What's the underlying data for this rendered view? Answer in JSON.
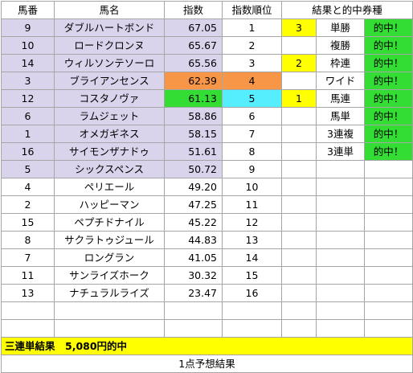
{
  "headers": {
    "umaban": "馬番",
    "bamei": "馬名",
    "shisu": "指数",
    "jun": "指数順位",
    "kekka": "結果と的中券種"
  },
  "rows": [
    {
      "umaban": "9",
      "bamei": "ダブルハートボンド",
      "shisu": "67.05",
      "jun": "1",
      "rank": "3",
      "bet": "単勝",
      "hit": "的中！"
    },
    {
      "umaban": "10",
      "bamei": "ロードクロンヌ",
      "shisu": "65.67",
      "jun": "2",
      "rank": "",
      "bet": "複勝",
      "hit": "的中！"
    },
    {
      "umaban": "14",
      "bamei": "ウィルソンテソーロ",
      "shisu": "65.56",
      "jun": "3",
      "rank": "2",
      "bet": "枠連",
      "hit": "的中！"
    },
    {
      "umaban": "3",
      "bamei": "ブライアンセンス",
      "shisu": "62.39",
      "jun": "4",
      "rank": "",
      "bet": "ワイド",
      "hit": "的中！"
    },
    {
      "umaban": "12",
      "bamei": "コスタノヴァ",
      "shisu": "61.13",
      "jun": "5",
      "rank": "1",
      "bet": "馬連",
      "hit": "的中！"
    },
    {
      "umaban": "6",
      "bamei": "ラムジェット",
      "shisu": "58.86",
      "jun": "6",
      "rank": "",
      "bet": "馬単",
      "hit": "的中！"
    },
    {
      "umaban": "1",
      "bamei": "オメガギネス",
      "shisu": "58.15",
      "jun": "7",
      "rank": "",
      "bet": "3連複",
      "hit": "的中！"
    },
    {
      "umaban": "16",
      "bamei": "サイモンザナドゥ",
      "shisu": "51.61",
      "jun": "8",
      "rank": "",
      "bet": "3連単",
      "hit": "的中！"
    },
    {
      "umaban": "5",
      "bamei": "シックスペンス",
      "shisu": "50.72",
      "jun": "9",
      "rank": "",
      "bet": "",
      "hit": ""
    },
    {
      "umaban": "4",
      "bamei": "ペリエール",
      "shisu": "49.20",
      "jun": "10",
      "rank": "",
      "bet": "",
      "hit": ""
    },
    {
      "umaban": "2",
      "bamei": "ハッピーマン",
      "shisu": "47.25",
      "jun": "11",
      "rank": "",
      "bet": "",
      "hit": ""
    },
    {
      "umaban": "15",
      "bamei": "ペプチドナイル",
      "shisu": "45.22",
      "jun": "12",
      "rank": "",
      "bet": "",
      "hit": ""
    },
    {
      "umaban": "8",
      "bamei": "サクラトゥジュール",
      "shisu": "44.83",
      "jun": "13",
      "rank": "",
      "bet": "",
      "hit": ""
    },
    {
      "umaban": "7",
      "bamei": "ロングラン",
      "shisu": "41.05",
      "jun": "14",
      "rank": "",
      "bet": "",
      "hit": ""
    },
    {
      "umaban": "11",
      "bamei": "サンライズホーク",
      "shisu": "30.32",
      "jun": "15",
      "rank": "",
      "bet": "",
      "hit": ""
    },
    {
      "umaban": "13",
      "bamei": "ナチュラルライズ",
      "shisu": "23.47",
      "jun": "16",
      "rank": "",
      "bet": "",
      "hit": ""
    }
  ],
  "summary": "三連単結果　5,080円的中",
  "footer": "1点予想結果",
  "colors": {
    "lavender": "#d9d3ec",
    "orange": "#f79646",
    "green": "#33dd33",
    "cyan": "#55eeff",
    "yellow": "#ffff00"
  }
}
